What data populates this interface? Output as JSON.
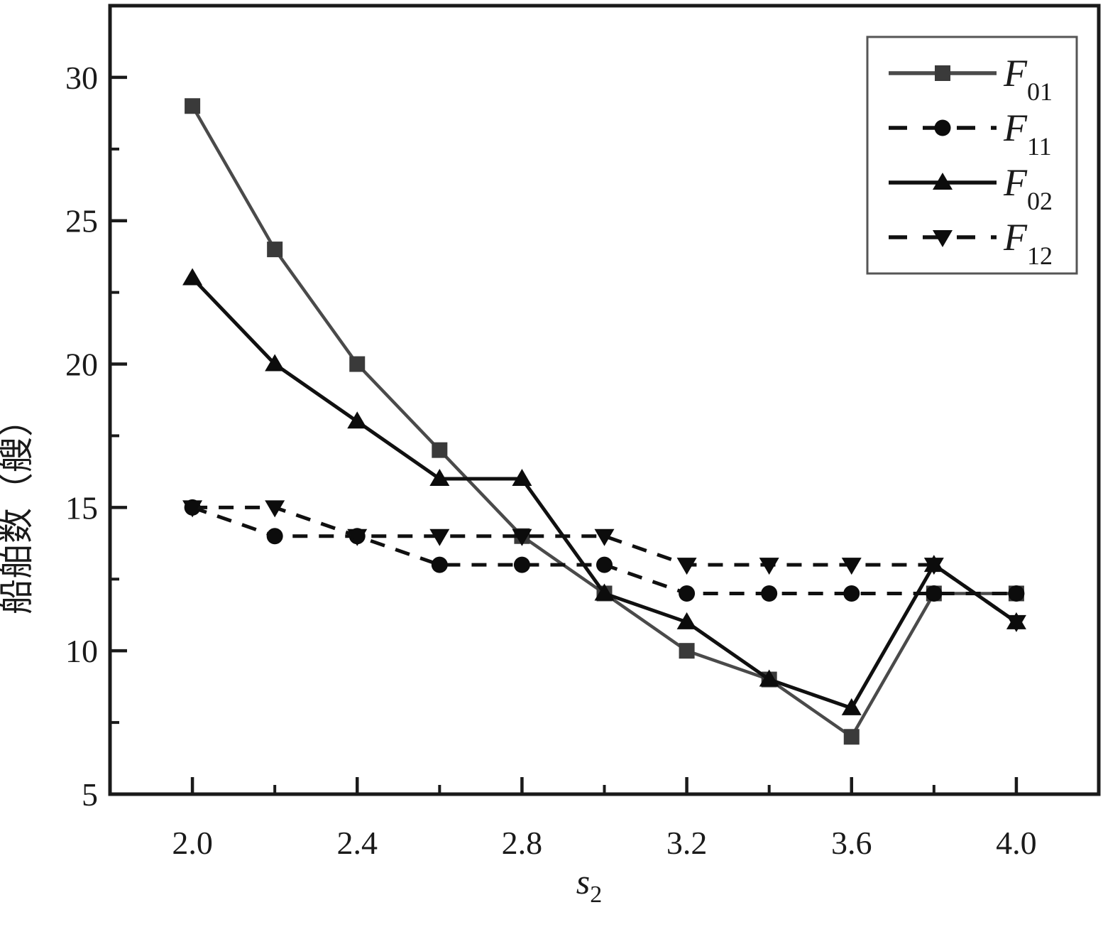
{
  "chart_data": {
    "type": "line",
    "x": [
      2.0,
      2.2,
      2.4,
      2.6,
      2.8,
      3.0,
      3.2,
      3.4,
      3.6,
      3.8,
      4.0
    ],
    "series": [
      {
        "name": "F01",
        "label_main": "F",
        "label_sub": "01",
        "marker": "square",
        "line": "solid",
        "color": "#4a4a4a",
        "marker_color": "#3a3a3a",
        "values": [
          29,
          24,
          20,
          17,
          14,
          12,
          10,
          9,
          7,
          12,
          12
        ]
      },
      {
        "name": "F11",
        "label_main": "F",
        "label_sub": "11",
        "marker": "circle",
        "line": "dashed",
        "color": "#101010",
        "marker_color": "#0c0c0c",
        "values": [
          15,
          14,
          14,
          13,
          13,
          13,
          12,
          12,
          12,
          12,
          12
        ]
      },
      {
        "name": "F02",
        "label_main": "F",
        "label_sub": "02",
        "marker": "triangle-up",
        "line": "solid",
        "color": "#101010",
        "marker_color": "#0c0c0c",
        "values": [
          23,
          20,
          18,
          16,
          16,
          12,
          11,
          9,
          8,
          13,
          11
        ]
      },
      {
        "name": "F12",
        "label_main": "F",
        "label_sub": "12",
        "marker": "triangle-down",
        "line": "dashed",
        "color": "#101010",
        "marker_color": "#0c0c0c",
        "values": [
          15,
          15,
          14,
          14,
          14,
          14,
          13,
          13,
          13,
          13,
          11
        ]
      }
    ],
    "title": "",
    "xlabel_main": "s",
    "xlabel_sub": "2",
    "ylabel": "船舶数（艘）",
    "xlim": [
      1.8,
      4.2
    ],
    "ylim": [
      5,
      32.5
    ],
    "x_ticks_major": [
      2.0,
      2.4,
      2.8,
      3.2,
      3.6,
      4.0
    ],
    "x_tick_labels": [
      "2.0",
      "2.4",
      "2.8",
      "3.2",
      "3.6",
      "4.0"
    ],
    "x_ticks_minor": [
      2.2,
      2.6,
      3.0,
      3.4,
      3.8
    ],
    "y_ticks_major": [
      5,
      10,
      15,
      20,
      25,
      30
    ],
    "y_tick_labels": [
      "5",
      "10",
      "15",
      "20",
      "25",
      "30"
    ],
    "y_ticks_minor": [
      7.5,
      12.5,
      17.5,
      22.5,
      27.5,
      32.5
    ],
    "grid": false,
    "legend_position": "top-right",
    "frame_color": "#1a1a1a",
    "background": "#ffffff"
  }
}
